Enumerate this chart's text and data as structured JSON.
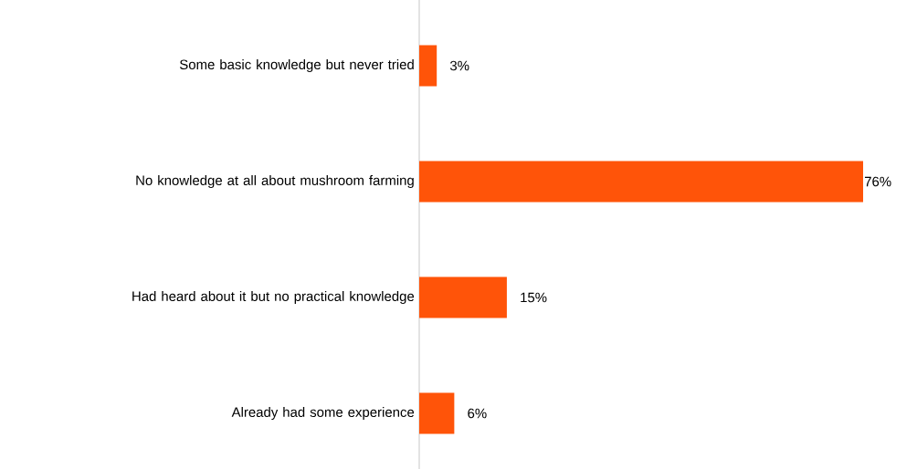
{
  "chart_data": {
    "type": "bar",
    "orientation": "horizontal",
    "categories": [
      "Some basic knowledge but never tried",
      "No knowledge at all about mushroom farming",
      "Had heard about it but no practical knowledge",
      "Already had some experience"
    ],
    "values": [
      3,
      76,
      15,
      6
    ],
    "value_labels": [
      "3%",
      "76%",
      "15%",
      "6%"
    ],
    "color": "#ff5409"
  }
}
